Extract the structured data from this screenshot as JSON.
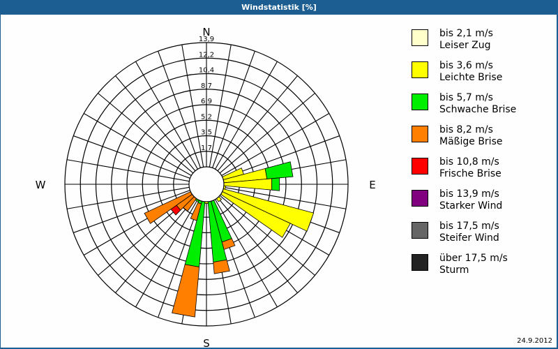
{
  "window": {
    "title": "Windstatistik [%]"
  },
  "footer": {
    "date": "24.9.2012"
  },
  "compass": {
    "n": "N",
    "e": "E",
    "s": "S",
    "w": "W"
  },
  "rings": [
    "1,7",
    "3,5",
    "5,2",
    "6,9",
    "8,7",
    "10,4",
    "12,2",
    "13,9"
  ],
  "legend": [
    {
      "line1": "bis 2,1 m/s",
      "line2": "Leiser Zug",
      "color": "#ffffcc"
    },
    {
      "line1": "bis 3,6 m/s",
      "line2": "Leichte Brise",
      "color": "#ffff00"
    },
    {
      "line1": "bis 5,7 m/s",
      "line2": "Schwache Brise",
      "color": "#00ee00"
    },
    {
      "line1": "bis 8,2 m/s",
      "line2": "Mäßige Brise",
      "color": "#ff8000"
    },
    {
      "line1": "bis 10,8 m/s",
      "line2": "Frische Brise",
      "color": "#ff0000"
    },
    {
      "line1": "bis 13,9 m/s",
      "line2": "Starker Wind",
      "color": "#800080"
    },
    {
      "line1": "bis 17,5 m/s",
      "line2": "Steifer Wind",
      "color": "#666666"
    },
    {
      "line1": "über 17,5 m/s",
      "line2": "Sturm",
      "color": "#222222"
    }
  ],
  "chart_data": {
    "type": "wind-rose",
    "title": "Windstatistik [%]",
    "radial_unit": "%",
    "radial_ticks": [
      1.7,
      3.5,
      5.2,
      6.9,
      8.7,
      10.4,
      12.2,
      13.9
    ],
    "radial_max": 13.9,
    "sector_width_deg": 10,
    "inner_radius_px": 25,
    "series_names": [
      "bis 2,1 m/s",
      "bis 3,6 m/s",
      "bis 5,7 m/s",
      "bis 8,2 m/s",
      "bis 10,8 m/s",
      "bis 13,9 m/s",
      "bis 17,5 m/s",
      "über 17,5 m/s"
    ],
    "colors": [
      "#ffffcc",
      "#ffff00",
      "#00ee00",
      "#ff8000",
      "#ff0000",
      "#800080",
      "#666666",
      "#222222"
    ],
    "sectors": [
      {
        "dir": 60,
        "cumulative": [
          0.5,
          1.2,
          1.2,
          1.2,
          1.2
        ]
      },
      {
        "dir": 70,
        "cumulative": [
          0.8,
          4.0,
          4.0,
          4.0,
          4.0
        ]
      },
      {
        "dir": 80,
        "cumulative": [
          1.0,
          6.3,
          9.0,
          9.0,
          9.0
        ]
      },
      {
        "dir": 90,
        "cumulative": [
          1.3,
          6.8,
          7.6,
          7.6,
          7.6
        ]
      },
      {
        "dir": 100,
        "cumulative": [
          1.5,
          2.0,
          2.0,
          2.0,
          2.0
        ]
      },
      {
        "dir": 110,
        "cumulative": [
          0.3,
          11.5,
          11.5,
          11.5,
          11.5
        ]
      },
      {
        "dir": 120,
        "cumulative": [
          0.3,
          9.6,
          9.6,
          9.6,
          9.6
        ]
      },
      {
        "dir": 140,
        "cumulative": [
          0.2,
          2.2,
          2.2,
          2.2,
          2.2
        ]
      },
      {
        "dir": 160,
        "cumulative": [
          0.1,
          0.1,
          6.2,
          7.0,
          7.0
        ]
      },
      {
        "dir": 170,
        "cumulative": [
          0.1,
          0.1,
          8.1,
          9.3,
          9.3
        ]
      },
      {
        "dir": 180,
        "cumulative": [
          0.1,
          2.0,
          2.0,
          2.0,
          2.0
        ]
      },
      {
        "dir": 190,
        "cumulative": [
          0.1,
          0.1,
          8.6,
          13.8,
          13.8
        ]
      },
      {
        "dir": 200,
        "cumulative": [
          0.1,
          0.1,
          2.1,
          3.9,
          3.9
        ]
      },
      {
        "dir": 210,
        "cumulative": [
          0.1,
          0.1,
          2.0,
          2.0,
          2.0
        ]
      },
      {
        "dir": 220,
        "cumulative": [
          0.1,
          0.1,
          1.0,
          3.4,
          3.4
        ]
      },
      {
        "dir": 230,
        "cumulative": [
          0.1,
          0.1,
          1.0,
          3.8,
          4.5
        ]
      },
      {
        "dir": 240,
        "cumulative": [
          0.1,
          0.1,
          0.5,
          7.1,
          7.1
        ]
      }
    ]
  }
}
